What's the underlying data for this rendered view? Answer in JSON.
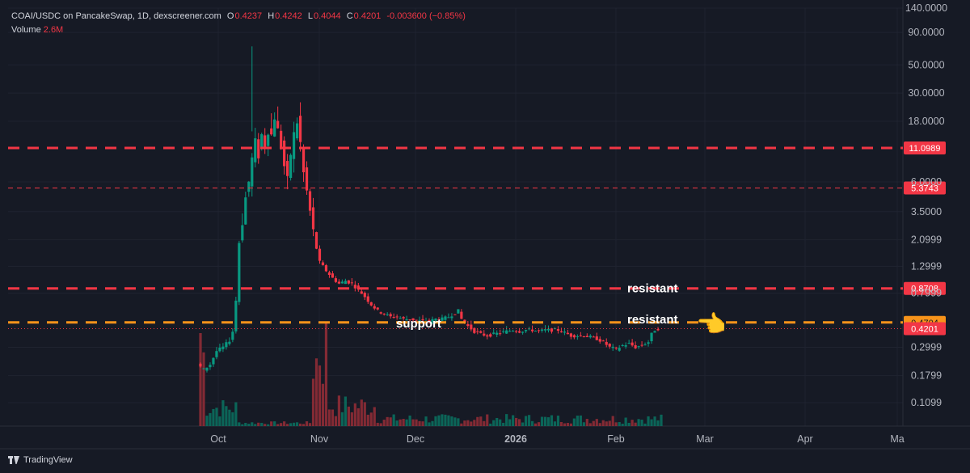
{
  "header": {
    "symbol": "COAI/USDC on PancakeSwap, 1D, dexscreener.com",
    "o_label": "O",
    "o_value": "0.4237",
    "h_label": "H",
    "h_value": "0.4242",
    "l_label": "L",
    "l_value": "0.4044",
    "c_label": "C",
    "c_value": "0.4201",
    "change": "-0.003600 (−0.85%)",
    "volume_label": "Volume",
    "volume_value": "2.6M"
  },
  "footer": {
    "brand": "TradingView"
  },
  "colors": {
    "up": "#089981",
    "down": "#f23645",
    "resistance": "#f23645",
    "support": "#f7931a",
    "background": "#161a25"
  },
  "chart_data": {
    "type": "candlestick",
    "scale": "log",
    "y_ticks": [
      "140.0000",
      "90.0000",
      "50.0000",
      "30.0000",
      "18.0000",
      "6.0000",
      "3.5000",
      "2.0999",
      "1.2999",
      "0.7999",
      "0.2999",
      "0.1799",
      "0.1099"
    ],
    "x_ticks": [
      "Oct",
      "Nov",
      "Dec",
      "2026",
      "Feb",
      "Mar",
      "Apr",
      "Ma"
    ],
    "ylim": [
      0.075,
      140
    ],
    "horizontal_lines": [
      {
        "value": 11.0989,
        "label": "11.0989",
        "color": "#f23645",
        "style": "dashed-thick"
      },
      {
        "value": 5.3743,
        "label": "5.3743",
        "color": "#f23645",
        "style": "dashed-thin"
      },
      {
        "value": 0.8708,
        "label": "0.8708",
        "color": "#f23645",
        "style": "dashed-thick"
      },
      {
        "value": 0.4704,
        "label": "0.4704",
        "color": "#f7931a",
        "style": "dashed-thick"
      },
      {
        "value": 0.4201,
        "label": "0.4201",
        "color": "#f23645",
        "style": "dotted"
      }
    ],
    "annotations": [
      {
        "text": "resistant",
        "near": 0.8708
      },
      {
        "text": "resistant",
        "near": 0.4704
      },
      {
        "text": "support",
        "near": 0.4704
      }
    ],
    "price_path": [
      [
        0,
        0.22
      ],
      [
        2,
        0.2
      ],
      [
        4,
        0.22
      ],
      [
        6,
        0.28
      ],
      [
        8,
        0.3
      ],
      [
        10,
        0.34
      ],
      [
        11,
        0.4
      ],
      [
        12,
        0.7
      ],
      [
        13,
        2.0
      ],
      [
        14,
        3.0
      ],
      [
        15,
        4.5
      ],
      [
        16,
        6.0
      ],
      [
        17,
        9.0
      ],
      [
        18,
        12
      ],
      [
        19,
        10
      ],
      [
        20,
        14
      ],
      [
        21,
        12
      ],
      [
        22,
        16
      ],
      [
        23,
        14
      ],
      [
        24,
        20
      ],
      [
        25,
        15
      ],
      [
        26,
        12
      ],
      [
        27,
        8
      ],
      [
        28,
        6
      ],
      [
        29,
        10
      ],
      [
        30,
        14
      ],
      [
        31,
        18
      ],
      [
        32,
        12
      ],
      [
        33,
        7
      ],
      [
        34,
        5
      ],
      [
        35,
        3.5
      ],
      [
        36,
        2.4
      ],
      [
        37,
        1.8
      ],
      [
        38,
        1.4
      ],
      [
        40,
        1.2
      ],
      [
        42,
        1.05
      ],
      [
        44,
        0.95
      ],
      [
        46,
        1.0
      ],
      [
        48,
        0.95
      ],
      [
        50,
        0.85
      ],
      [
        52,
        0.75
      ],
      [
        54,
        0.65
      ],
      [
        56,
        0.58
      ],
      [
        58,
        0.55
      ],
      [
        60,
        0.52
      ],
      [
        62,
        0.52
      ],
      [
        64,
        0.5
      ],
      [
        66,
        0.5
      ],
      [
        68,
        0.49
      ],
      [
        70,
        0.48
      ],
      [
        72,
        0.48
      ],
      [
        74,
        0.5
      ],
      [
        76,
        0.5
      ],
      [
        78,
        0.52
      ],
      [
        80,
        0.56
      ],
      [
        81,
        0.58
      ],
      [
        82,
        0.5
      ],
      [
        84,
        0.44
      ],
      [
        86,
        0.4
      ],
      [
        88,
        0.38
      ],
      [
        90,
        0.37
      ],
      [
        92,
        0.38
      ],
      [
        94,
        0.39
      ],
      [
        96,
        0.4
      ],
      [
        98,
        0.41
      ],
      [
        100,
        0.4
      ],
      [
        102,
        0.41
      ],
      [
        104,
        0.41
      ],
      [
        106,
        0.4
      ],
      [
        108,
        0.41
      ],
      [
        110,
        0.41
      ],
      [
        112,
        0.41
      ],
      [
        114,
        0.39
      ],
      [
        116,
        0.37
      ],
      [
        118,
        0.37
      ],
      [
        120,
        0.37
      ],
      [
        122,
        0.36
      ],
      [
        124,
        0.35
      ],
      [
        126,
        0.33
      ],
      [
        128,
        0.3
      ],
      [
        130,
        0.29
      ],
      [
        132,
        0.31
      ],
      [
        134,
        0.32
      ],
      [
        136,
        0.3
      ],
      [
        138,
        0.31
      ],
      [
        140,
        0.33
      ],
      [
        141,
        0.38
      ],
      [
        142,
        0.41
      ],
      [
        143,
        0.42
      ]
    ]
  }
}
